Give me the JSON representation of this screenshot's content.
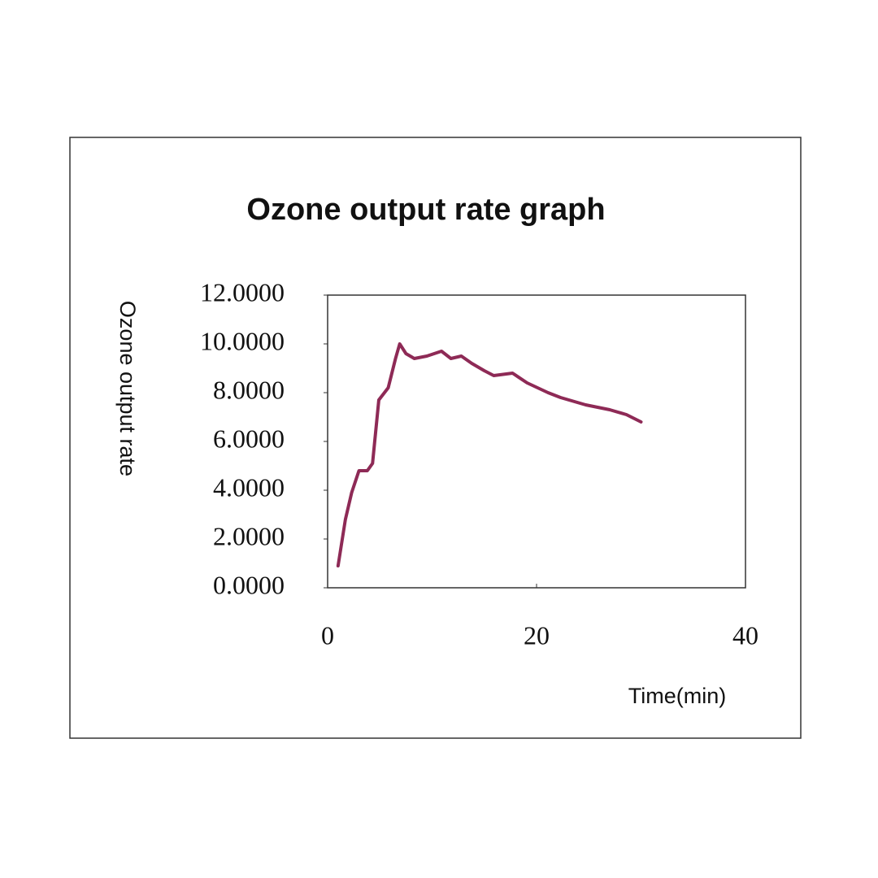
{
  "chart_data": {
    "type": "line",
    "title": "Ozone output rate graph",
    "y_label": "Ozone output rate",
    "x_label": "Time(min)",
    "x": [
      1.0,
      1.7,
      2.3,
      3.0,
      3.8,
      4.3,
      4.9,
      5.8,
      6.5,
      6.9,
      7.5,
      8.3,
      9.5,
      10.9,
      11.8,
      12.8,
      13.8,
      15.0,
      15.9,
      17.7,
      19.1,
      21.1,
      22.3,
      24.7,
      27.0,
      28.6,
      30.0
    ],
    "series": [
      {
        "name": "Ozone output rate",
        "color": "#8e2a56",
        "values": [
          0.9,
          2.8,
          3.9,
          4.8,
          4.8,
          5.1,
          7.7,
          8.2,
          9.4,
          10.0,
          9.6,
          9.4,
          9.5,
          9.7,
          9.4,
          9.5,
          9.2,
          8.9,
          8.7,
          8.8,
          8.4,
          8.0,
          7.8,
          7.5,
          7.3,
          7.1,
          6.8
        ]
      }
    ],
    "xlim": [
      0,
      40
    ],
    "xticks": [
      0,
      20,
      40
    ],
    "ylim": [
      0,
      12
    ],
    "yticks": [
      {
        "value": 0,
        "label": "0.0000"
      },
      {
        "value": 2,
        "label": "2.0000"
      },
      {
        "value": 4,
        "label": "4.0000"
      },
      {
        "value": 6,
        "label": "6.0000"
      },
      {
        "value": 8,
        "label": "8.0000"
      },
      {
        "value": 10,
        "label": "10.0000"
      },
      {
        "value": 12,
        "label": "12.0000"
      }
    ]
  }
}
